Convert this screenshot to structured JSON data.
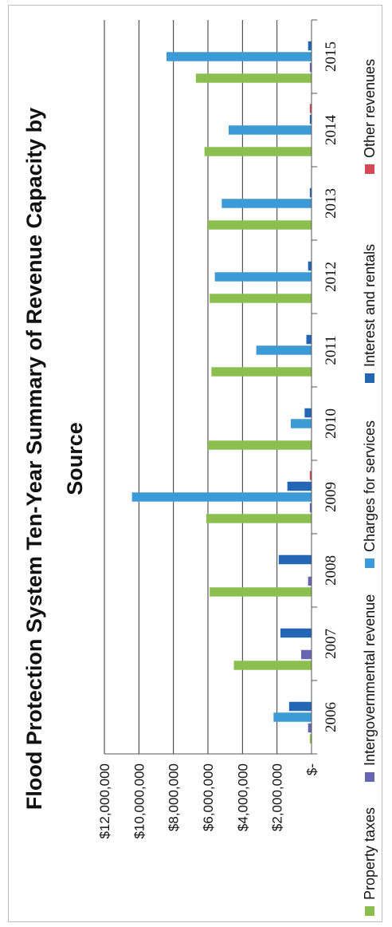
{
  "chart_data": {
    "type": "bar",
    "title_lines": [
      "Flood Protection System Ten-Year Summary of Revenue Capacity by",
      "Source"
    ],
    "categories": [
      "2006",
      "2007",
      "2008",
      "2009",
      "2010",
      "2011",
      "2012",
      "2013",
      "2014",
      "2015"
    ],
    "y_tick_labels": [
      "$-",
      "$2,000,000",
      "$4,000,000",
      "$6,000,000",
      "$8,000,000",
      "$10,000,000",
      "$12,000,000"
    ],
    "ylim": [
      0,
      12000000
    ],
    "grid": true,
    "legend_position": "bottom",
    "series": [
      {
        "name": "Property taxes",
        "color": "#8cbf4f",
        "values": [
          100000,
          4500000,
          5900000,
          6100000,
          6000000,
          5800000,
          5900000,
          6000000,
          6200000,
          6700000
        ]
      },
      {
        "name": "Intergovernmental revenue",
        "color": "#6666b3",
        "values": [
          200000,
          600000,
          200000,
          100000,
          0,
          0,
          0,
          0,
          0,
          100000
        ]
      },
      {
        "name": "Charges for services",
        "color": "#3c9ad6",
        "values": [
          2200000,
          0,
          0,
          10400000,
          1200000,
          3200000,
          5600000,
          5200000,
          4800000,
          8400000
        ]
      },
      {
        "name": "Interest and rentals",
        "color": "#2466b4",
        "values": [
          1300000,
          1800000,
          1900000,
          1400000,
          400000,
          300000,
          200000,
          100000,
          100000,
          200000
        ]
      },
      {
        "name": "Other revenues",
        "color": "#d34a55",
        "values": [
          0,
          0,
          0,
          100000,
          0,
          0,
          0,
          0,
          100000,
          0
        ]
      }
    ]
  }
}
